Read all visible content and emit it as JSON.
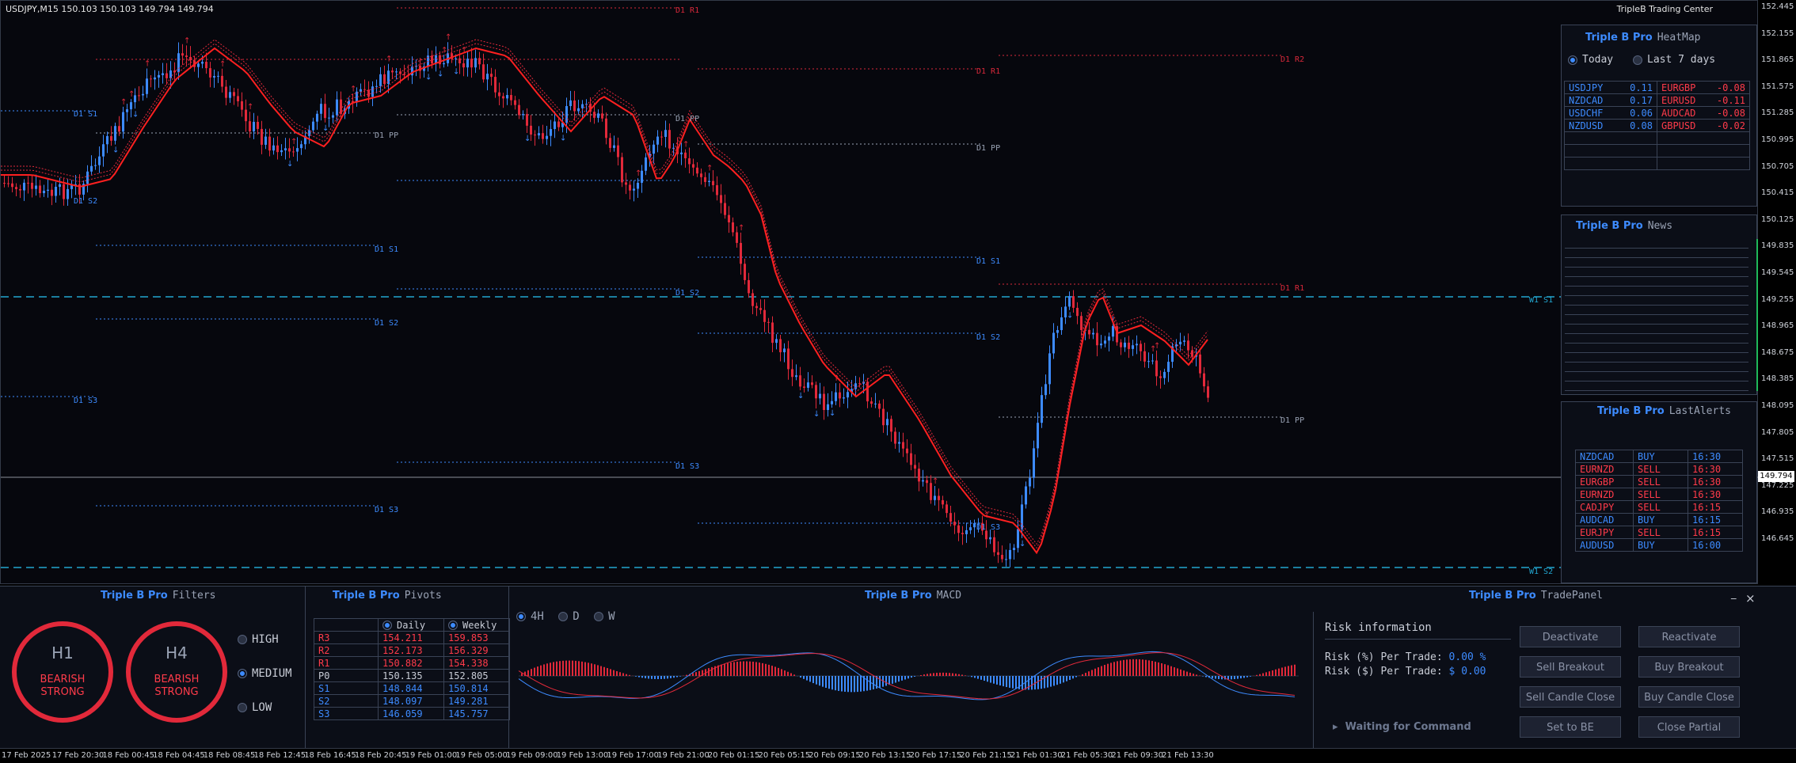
{
  "chart": {
    "symbol_info": "USDJPY,M15  150.103 150.103 149.794 149.794",
    "brand": "TripleB Trading Center",
    "current_price": "149.794",
    "price_labels": [
      "152.445",
      "152.155",
      "151.865",
      "151.575",
      "151.285",
      "150.995",
      "150.705",
      "150.415",
      "150.125",
      "149.835",
      "149.545",
      "149.255",
      "148.965",
      "148.675",
      "148.385",
      "148.095",
      "147.805",
      "147.515",
      "147.225",
      "146.935",
      "146.645"
    ],
    "time_labels": [
      "17 Feb 2025",
      "17 Feb 20:30",
      "18 Feb 00:45",
      "18 Feb 04:45",
      "18 Feb 08:45",
      "18 Feb 12:45",
      "18 Feb 16:45",
      "18 Feb 20:45",
      "19 Feb 01:00",
      "19 Feb 05:00",
      "19 Feb 09:00",
      "19 Feb 13:00",
      "19 Feb 17:00",
      "19 Feb 21:00",
      "20 Feb 01:15",
      "20 Feb 05:15",
      "20 Feb 09:15",
      "20 Feb 13:15",
      "20 Feb 17:15",
      "20 Feb 21:15",
      "21 Feb 01:30",
      "21 Feb 05:30",
      "21 Feb 09:30",
      "21 Feb 13:30"
    ],
    "levels": {
      "d1_r1": "D1 R1",
      "d1_r2": "D1 R2",
      "d1_pp": "D1 PP",
      "d1_s1": "D1 S1",
      "d1_s2": "D1 S2",
      "d1_s3": "D1 S3",
      "w1_s1": "W1 S1",
      "w1_s2": "W1 S2"
    }
  },
  "heatmap": {
    "brand": "Triple B Pro",
    "title": "HeatMap",
    "option_today": "Today",
    "option_last7": "Last 7 days",
    "selected": "Today",
    "left": [
      {
        "pair": "USDJPY",
        "value": "0.11"
      },
      {
        "pair": "NZDCAD",
        "value": "0.17"
      },
      {
        "pair": "USDCHF",
        "value": "0.06"
      },
      {
        "pair": "NZDUSD",
        "value": "0.08"
      }
    ],
    "right": [
      {
        "pair": "EURGBP",
        "value": "-0.08"
      },
      {
        "pair": "EURUSD",
        "value": "-0.11"
      },
      {
        "pair": "AUDCAD",
        "value": "-0.08"
      },
      {
        "pair": "GBPUSD",
        "value": "-0.02"
      }
    ]
  },
  "news": {
    "brand": "Triple B Pro",
    "title": "News"
  },
  "alerts": {
    "brand": "Triple B Pro",
    "title": "LastAlerts",
    "rows": [
      {
        "pair": "NZDCAD",
        "side": "BUY",
        "time": "16:30"
      },
      {
        "pair": "EURNZD",
        "side": "SELL",
        "time": "16:30"
      },
      {
        "pair": "EURGBP",
        "side": "SELL",
        "time": "16:30"
      },
      {
        "pair": "EURNZD",
        "side": "SELL",
        "time": "16:30"
      },
      {
        "pair": "CADJPY",
        "side": "SELL",
        "time": "16:15"
      },
      {
        "pair": "AUDCAD",
        "side": "BUY",
        "time": "16:15"
      },
      {
        "pair": "EURJPY",
        "side": "SELL",
        "time": "16:15"
      },
      {
        "pair": "AUDUSD",
        "side": "BUY",
        "time": "16:00"
      }
    ]
  },
  "filters": {
    "brand": "Triple B Pro",
    "title": "Filters",
    "gauges": [
      {
        "tf": "H1",
        "line1": "BEARISH",
        "line2": "STRONG"
      },
      {
        "tf": "H4",
        "line1": "BEARISH",
        "line2": "STRONG"
      }
    ],
    "options": [
      "HIGH",
      "MEDIUM",
      "LOW"
    ],
    "selected": "MEDIUM"
  },
  "pivots": {
    "brand": "Triple B Pro",
    "title": "Pivots",
    "col_daily": "Daily",
    "col_weekly": "Weekly",
    "rows": [
      {
        "name": "R3",
        "daily": "154.211",
        "weekly": "159.853"
      },
      {
        "name": "R2",
        "daily": "152.173",
        "weekly": "156.329"
      },
      {
        "name": "R1",
        "daily": "150.882",
        "weekly": "154.338"
      },
      {
        "name": "P0",
        "daily": "150.135",
        "weekly": "152.805"
      },
      {
        "name": "S1",
        "daily": "148.844",
        "weekly": "150.814"
      },
      {
        "name": "S2",
        "daily": "148.097",
        "weekly": "149.281"
      },
      {
        "name": "S3",
        "daily": "146.059",
        "weekly": "145.757"
      }
    ]
  },
  "macd": {
    "brand": "Triple B Pro",
    "title": "MACD",
    "timeframes": [
      "4H",
      "D",
      "W"
    ],
    "selected": "4H"
  },
  "tradepanel": {
    "brand": "Triple B Pro",
    "title": "TradePanel",
    "minimize": "_",
    "close": "×",
    "risk_title": "Risk information",
    "risk_pct_label": "Risk (%) Per Trade:",
    "risk_pct_value": "0.00 %",
    "risk_usd_label": "Risk ($) Per Trade:",
    "risk_usd_value": "$ 0.00",
    "status": "Waiting for Command",
    "buttons": {
      "deactivate": "Deactivate",
      "reactivate": "Reactivate",
      "sell_breakout": "Sell Breakout",
      "buy_breakout": "Buy Breakout",
      "sell_candle_close": "Sell Candle Close",
      "buy_candle_close": "Buy Candle Close",
      "set_to_be": "Set to BE",
      "close_partial": "Close Partial"
    }
  }
}
